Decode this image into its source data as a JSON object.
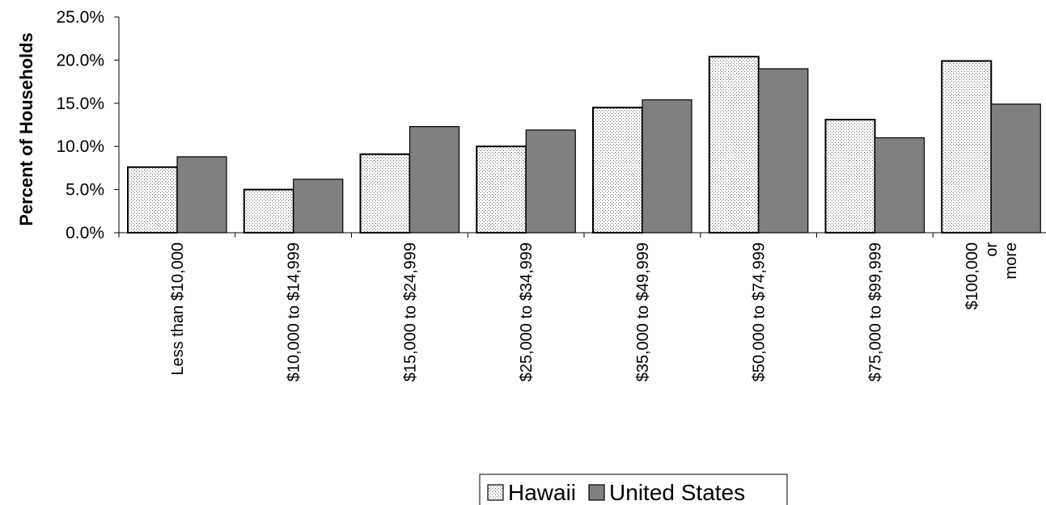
{
  "chart_data": {
    "type": "bar",
    "title": "",
    "xlabel": "",
    "ylabel": "Percent of Households",
    "ylim": [
      0,
      25
    ],
    "yticks": [
      "0.0%",
      "5.0%",
      "10.0%",
      "15.0%",
      "20.0%",
      "25.0%"
    ],
    "grid": false,
    "legend_position": "bottom",
    "categories": [
      [
        "Less than $10,000"
      ],
      [
        "$10,000 to $14,999"
      ],
      [
        "$15,000 to $24,999"
      ],
      [
        "$25,000 to $34,999"
      ],
      [
        "$35,000 to $49,999"
      ],
      [
        "$50,000 to $74,999"
      ],
      [
        "$75,000 to $99,999"
      ],
      [
        "$100,000",
        "or",
        "more"
      ]
    ],
    "series": [
      {
        "name": "Hawaii",
        "pattern": "dotted",
        "color": "#ffffff",
        "values": [
          7.6,
          5.0,
          9.1,
          10.0,
          14.5,
          20.4,
          13.1,
          19.9
        ]
      },
      {
        "name": "United States",
        "pattern": "solid",
        "color": "#808080",
        "values": [
          8.8,
          6.2,
          12.3,
          11.9,
          15.4,
          19.0,
          11.0,
          14.9
        ]
      }
    ]
  }
}
